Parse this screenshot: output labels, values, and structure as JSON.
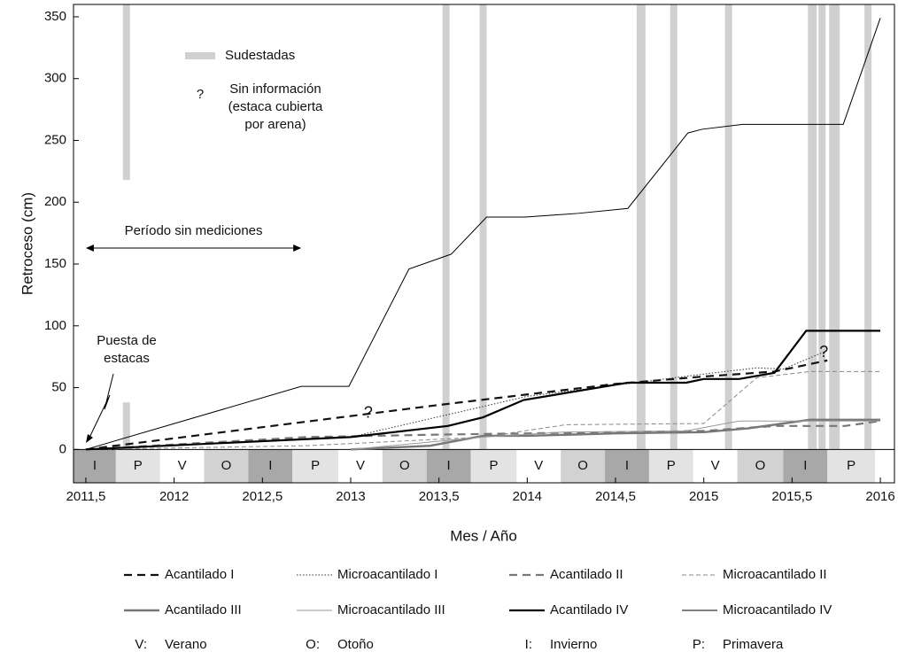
{
  "chart_data": {
    "type": "line",
    "xlabel": "Mes / Año",
    "ylabel": "Retroceso (cm)",
    "xlim": [
      2011.43,
      2016.08
    ],
    "ylim": [
      -27,
      360
    ],
    "xticks": [
      {
        "value": 2011.5,
        "label": "2011,5"
      },
      2012,
      {
        "value": 2012.5,
        "label": "2012,5"
      },
      2013,
      {
        "value": 2013.5,
        "label": "2013,5"
      },
      2014,
      {
        "value": 2014.5,
        "label": "2014,5"
      },
      2015,
      {
        "value": 2015.5,
        "label": "2015,5"
      },
      2016
    ],
    "yticks": [
      0,
      50,
      100,
      150,
      200,
      250,
      300,
      350
    ],
    "seasons": {
      "labels": [
        "I",
        "P",
        "V",
        "O",
        "I",
        "P",
        "V",
        "O",
        "I",
        "P",
        "V",
        "O",
        "I",
        "P",
        "V",
        "O",
        "I",
        "P"
      ],
      "edges": [
        2011.43,
        2011.67,
        2011.92,
        2012.17,
        2012.42,
        2012.67,
        2012.93,
        2013.18,
        2013.43,
        2013.68,
        2013.94,
        2014.19,
        2014.44,
        2014.69,
        2014.94,
        2015.19,
        2015.45,
        2015.7,
        2015.97
      ],
      "colors": {
        "I": "#a8a8a8",
        "P": "#e3e3e3",
        "V": "#ffffff",
        "O": "#d2d2d2"
      }
    },
    "sudestadas": {
      "label": "Sudestadas",
      "color": "#d0d0d0",
      "spans": [
        {
          "x": [
            2011.71,
            2011.75
          ],
          "y": [
            218,
            360
          ]
        },
        {
          "x": [
            2011.71,
            2011.75
          ],
          "y": [
            0,
            38
          ]
        },
        {
          "x": [
            2013.52,
            2013.56
          ]
        },
        {
          "x": [
            2013.73,
            2013.77
          ]
        },
        {
          "x": [
            2014.62,
            2014.67
          ]
        },
        {
          "x": [
            2014.81,
            2014.85
          ]
        },
        {
          "x": [
            2015.12,
            2015.16
          ]
        },
        {
          "x": [
            2015.59,
            2015.64
          ]
        },
        {
          "x": [
            2015.65,
            2015.69
          ]
        },
        {
          "x": [
            2015.71,
            2015.77
          ]
        },
        {
          "x": [
            2015.91,
            2015.95
          ]
        }
      ]
    },
    "series": [
      {
        "name": "Acantilado I",
        "color": "#111111",
        "width": 2.2,
        "dash": "9 6",
        "x": [
          2011.5,
          2013.5,
          2014.5,
          2015.0,
          2015.4,
          2015.7
        ],
        "values": [
          0,
          36,
          53,
          59,
          63,
          72
        ]
      },
      {
        "name": "Microacantilado I",
        "color": "#333333",
        "width": 1,
        "dash": "1.5 2",
        "x": [
          2011.5,
          2013,
          2014,
          2015,
          2015.3,
          2015.45,
          2015.7
        ],
        "values": [
          0,
          10,
          43,
          61,
          66,
          65,
          80
        ]
      },
      {
        "name": "Acantilado II",
        "color": "#777777",
        "width": 2.2,
        "dash": "9 6",
        "x": [
          2011.5,
          2012.75,
          2013.5,
          2014,
          2014.5,
          2015,
          2015.4,
          2015.8,
          2016
        ],
        "values": [
          0,
          10,
          12,
          13,
          14,
          15,
          19,
          19,
          23
        ]
      },
      {
        "name": "Microacantilado II",
        "color": "#888888",
        "width": 1,
        "dash": "5 3",
        "x": [
          2011.5,
          2012.75,
          2013.75,
          2014.22,
          2015,
          2015.3,
          2015.6,
          2016
        ],
        "values": [
          0,
          3,
          10,
          20,
          21,
          58,
          63,
          63
        ]
      },
      {
        "name": "Acantilado III",
        "color": "#777777",
        "width": 2.4,
        "dash": "",
        "x": [
          2013,
          2013.45,
          2013.75,
          2014,
          2014.5,
          2015,
          2015.25,
          2015.6,
          2016
        ],
        "values": [
          0,
          3,
          11,
          11,
          13,
          14,
          17,
          24,
          24
        ]
      },
      {
        "name": "Microacantilado III",
        "color": "#999999",
        "width": 1,
        "dash": "",
        "x": [
          2013,
          2013.75,
          2014.2,
          2014.9,
          2015.2,
          2015.4,
          2016
        ],
        "values": [
          0,
          10,
          14,
          15,
          23,
          23,
          23
        ]
      },
      {
        "name": "Acantilado IV",
        "color": "#000000",
        "width": 2.2,
        "dash": "",
        "x": [
          2011.5,
          2013,
          2013.55,
          2013.75,
          2013.98,
          2014.57,
          2014.9,
          2015,
          2015.2,
          2015.4,
          2015.58,
          2016
        ],
        "values": [
          0,
          10,
          19,
          26,
          40,
          54,
          54,
          57,
          57,
          62,
          96,
          96
        ]
      },
      {
        "name": "Microacantilado IV",
        "color": "#000000",
        "width": 1,
        "dash": "",
        "x": [
          2011.5,
          2012.72,
          2012.99,
          2013.33,
          2013.57,
          2013.77,
          2013.99,
          2014.29,
          2014.57,
          2014.91,
          2014.99,
          2015.22,
          2015.4,
          2015.59,
          2015.79,
          2016
        ],
        "values": [
          0,
          51,
          51,
          146,
          158,
          188,
          188,
          191,
          195,
          256,
          259,
          263,
          263,
          263,
          263,
          349
        ]
      }
    ],
    "season_legend": [
      {
        "key": "V:",
        "label": "Verano"
      },
      {
        "key": "O:",
        "label": "Otoño"
      },
      {
        "key": "I:",
        "label": "Invierno"
      },
      {
        "key": "P:",
        "label": "Primavera"
      }
    ],
    "annotations": {
      "no_info_symbol": "?",
      "no_info_text": [
        "Sin información",
        "(estaca cubierta",
        "por arena)"
      ],
      "period": "Período sin mediciones",
      "period_x": [
        2011.5,
        2012.72
      ],
      "stakes": [
        "Puesta de",
        "estacas"
      ],
      "marks": [
        {
          "text": "?",
          "x": 2013.1,
          "y": 29
        },
        {
          "text": "?",
          "x": 2015.68,
          "y": 78
        }
      ]
    }
  }
}
